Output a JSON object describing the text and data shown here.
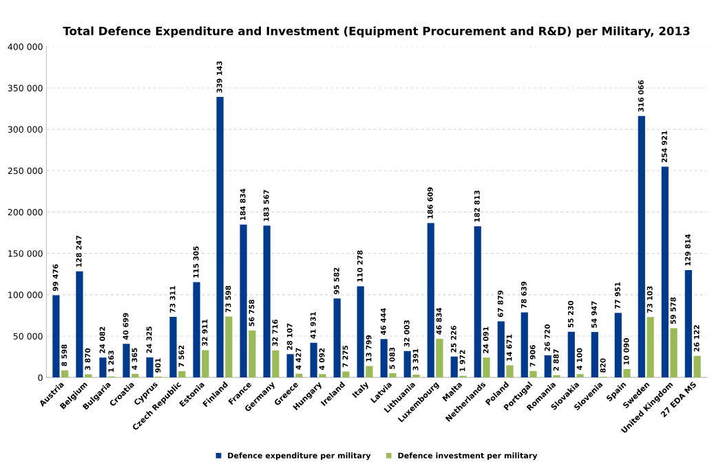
{
  "chart_data": {
    "type": "bar",
    "title": "Total Defence Expenditure and Investment (Equipment Procurement and R&D) per Military, 2013",
    "categories": [
      "Austria",
      "Belgium",
      "Bulgaria",
      "Croatia",
      "Cyprus",
      "Czech Republic",
      "Estonia",
      "Finland",
      "France",
      "Germany",
      "Greece",
      "Hungary",
      "Ireland",
      "Italy",
      "Latvia",
      "Lithuania",
      "Luxembourg",
      "Malta",
      "Netherlands",
      "Poland",
      "Portugal",
      "Romania",
      "Slovakia",
      "Slovenia",
      "Spain",
      "Sweden",
      "United Kingdom",
      "27 EDA MS"
    ],
    "series": [
      {
        "name": "Defence expenditure per military",
        "color": "#003a8c",
        "values": [
          99476,
          128247,
          24082,
          40699,
          24325,
          73311,
          115305,
          339143,
          184834,
          183567,
          28107,
          41931,
          95582,
          110278,
          46444,
          32003,
          186609,
          25226,
          182813,
          67879,
          78639,
          26720,
          55230,
          54947,
          77951,
          316066,
          254921,
          129814
        ],
        "value_labels": [
          "99 476",
          "128 247",
          "24 082",
          "40 699",
          "24 325",
          "73 311",
          "115 305",
          "339 143",
          "184 834",
          "183 567",
          "28 107",
          "41 931",
          "95 582",
          "110 278",
          "46 444",
          "32 003",
          "186 609",
          "25 226",
          "182 813",
          "67 879",
          "78 639",
          "26 720",
          "55 230",
          "54 947",
          "77 951",
          "316 066",
          "254 921",
          "129 814"
        ]
      },
      {
        "name": "Defence investment per military",
        "color": "#9bbb59",
        "values": [
          8598,
          3870,
          1263,
          4365,
          901,
          7562,
          32911,
          73598,
          56758,
          32716,
          4427,
          4092,
          7275,
          13799,
          5083,
          3391,
          46834,
          1972,
          24091,
          14671,
          7906,
          2887,
          4100,
          820,
          10090,
          73103,
          59578,
          26122
        ],
        "value_labels": [
          "8 598",
          "3 870",
          "1 263",
          "4 365",
          "901",
          "7 562",
          "32 911",
          "73 598",
          "56 758",
          "32 716",
          "4 427",
          "4 092",
          "7 275",
          "13 799",
          "5 083",
          "3 391",
          "46 834",
          "1 972",
          "24 091",
          "14 671",
          "7 906",
          "2 887",
          "4 100",
          "820",
          "10 090",
          "73 103",
          "59 578",
          "26 122"
        ]
      }
    ],
    "ylim": [
      0,
      400000
    ],
    "yticks": [
      0,
      {
        "value": 50000,
        "label": "50 000"
      },
      {
        "value": 100000,
        "label": "100 000"
      },
      {
        "value": 150000,
        "label": "150 000"
      },
      {
        "value": 200000,
        "label": "200 000"
      },
      {
        "value": 250000,
        "label": "250 000"
      },
      {
        "value": 300000,
        "label": "300 000"
      },
      {
        "value": 350000,
        "label": "350 000"
      },
      {
        "value": 400000,
        "label": "400 000"
      }
    ],
    "grid": "y",
    "legend": "bottom"
  }
}
